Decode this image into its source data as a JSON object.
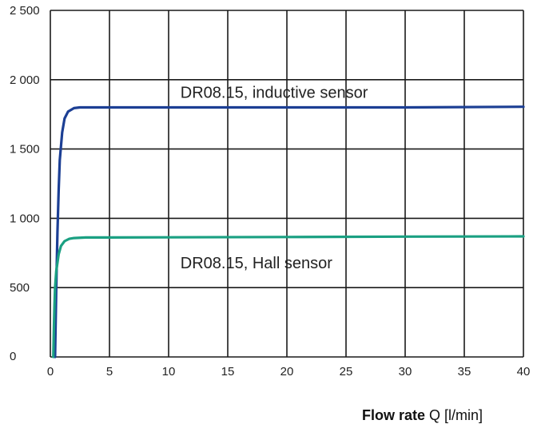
{
  "chart_data": {
    "type": "line",
    "title": "",
    "xlabel_bold": "Flow rate",
    "xlabel_rest": " Q [l/min]",
    "ylabel": "",
    "xlim": [
      0,
      40
    ],
    "ylim": [
      0,
      2500
    ],
    "x_ticks": [
      0,
      5,
      10,
      15,
      20,
      25,
      30,
      35,
      40
    ],
    "y_ticks": [
      0,
      500,
      1000,
      1500,
      2000,
      2500
    ],
    "x_tick_labels": [
      "0",
      "5",
      "10",
      "15",
      "20",
      "25",
      "30",
      "35",
      "40"
    ],
    "y_tick_labels": [
      "0",
      "500",
      "1 000",
      "1 500",
      "2 000",
      "2 500"
    ],
    "grid": true,
    "series": [
      {
        "label": "DR08.15, inductive sensor",
        "color": "#1c3f94",
        "x": [
          0.4,
          0.5,
          0.6,
          0.7,
          0.8,
          1.0,
          1.2,
          1.5,
          2.0,
          2.5,
          3.0,
          5,
          10,
          20,
          30,
          40
        ],
        "y": [
          0,
          500,
          900,
          1200,
          1420,
          1620,
          1720,
          1770,
          1795,
          1800,
          1800,
          1800,
          1800,
          1800,
          1800,
          1805
        ],
        "label_anchor": [
          11,
          1870
        ]
      },
      {
        "label": "DR08.15, Hall sensor",
        "color": "#1aa082",
        "x": [
          0.25,
          0.3,
          0.35,
          0.4,
          0.5,
          0.7,
          0.9,
          1.2,
          1.6,
          2.0,
          3.0,
          5,
          10,
          20,
          30,
          40
        ],
        "y": [
          0,
          200,
          380,
          500,
          620,
          740,
          800,
          835,
          852,
          858,
          862,
          862,
          863,
          865,
          868,
          870
        ],
        "label_anchor": [
          11,
          640
        ]
      }
    ]
  }
}
